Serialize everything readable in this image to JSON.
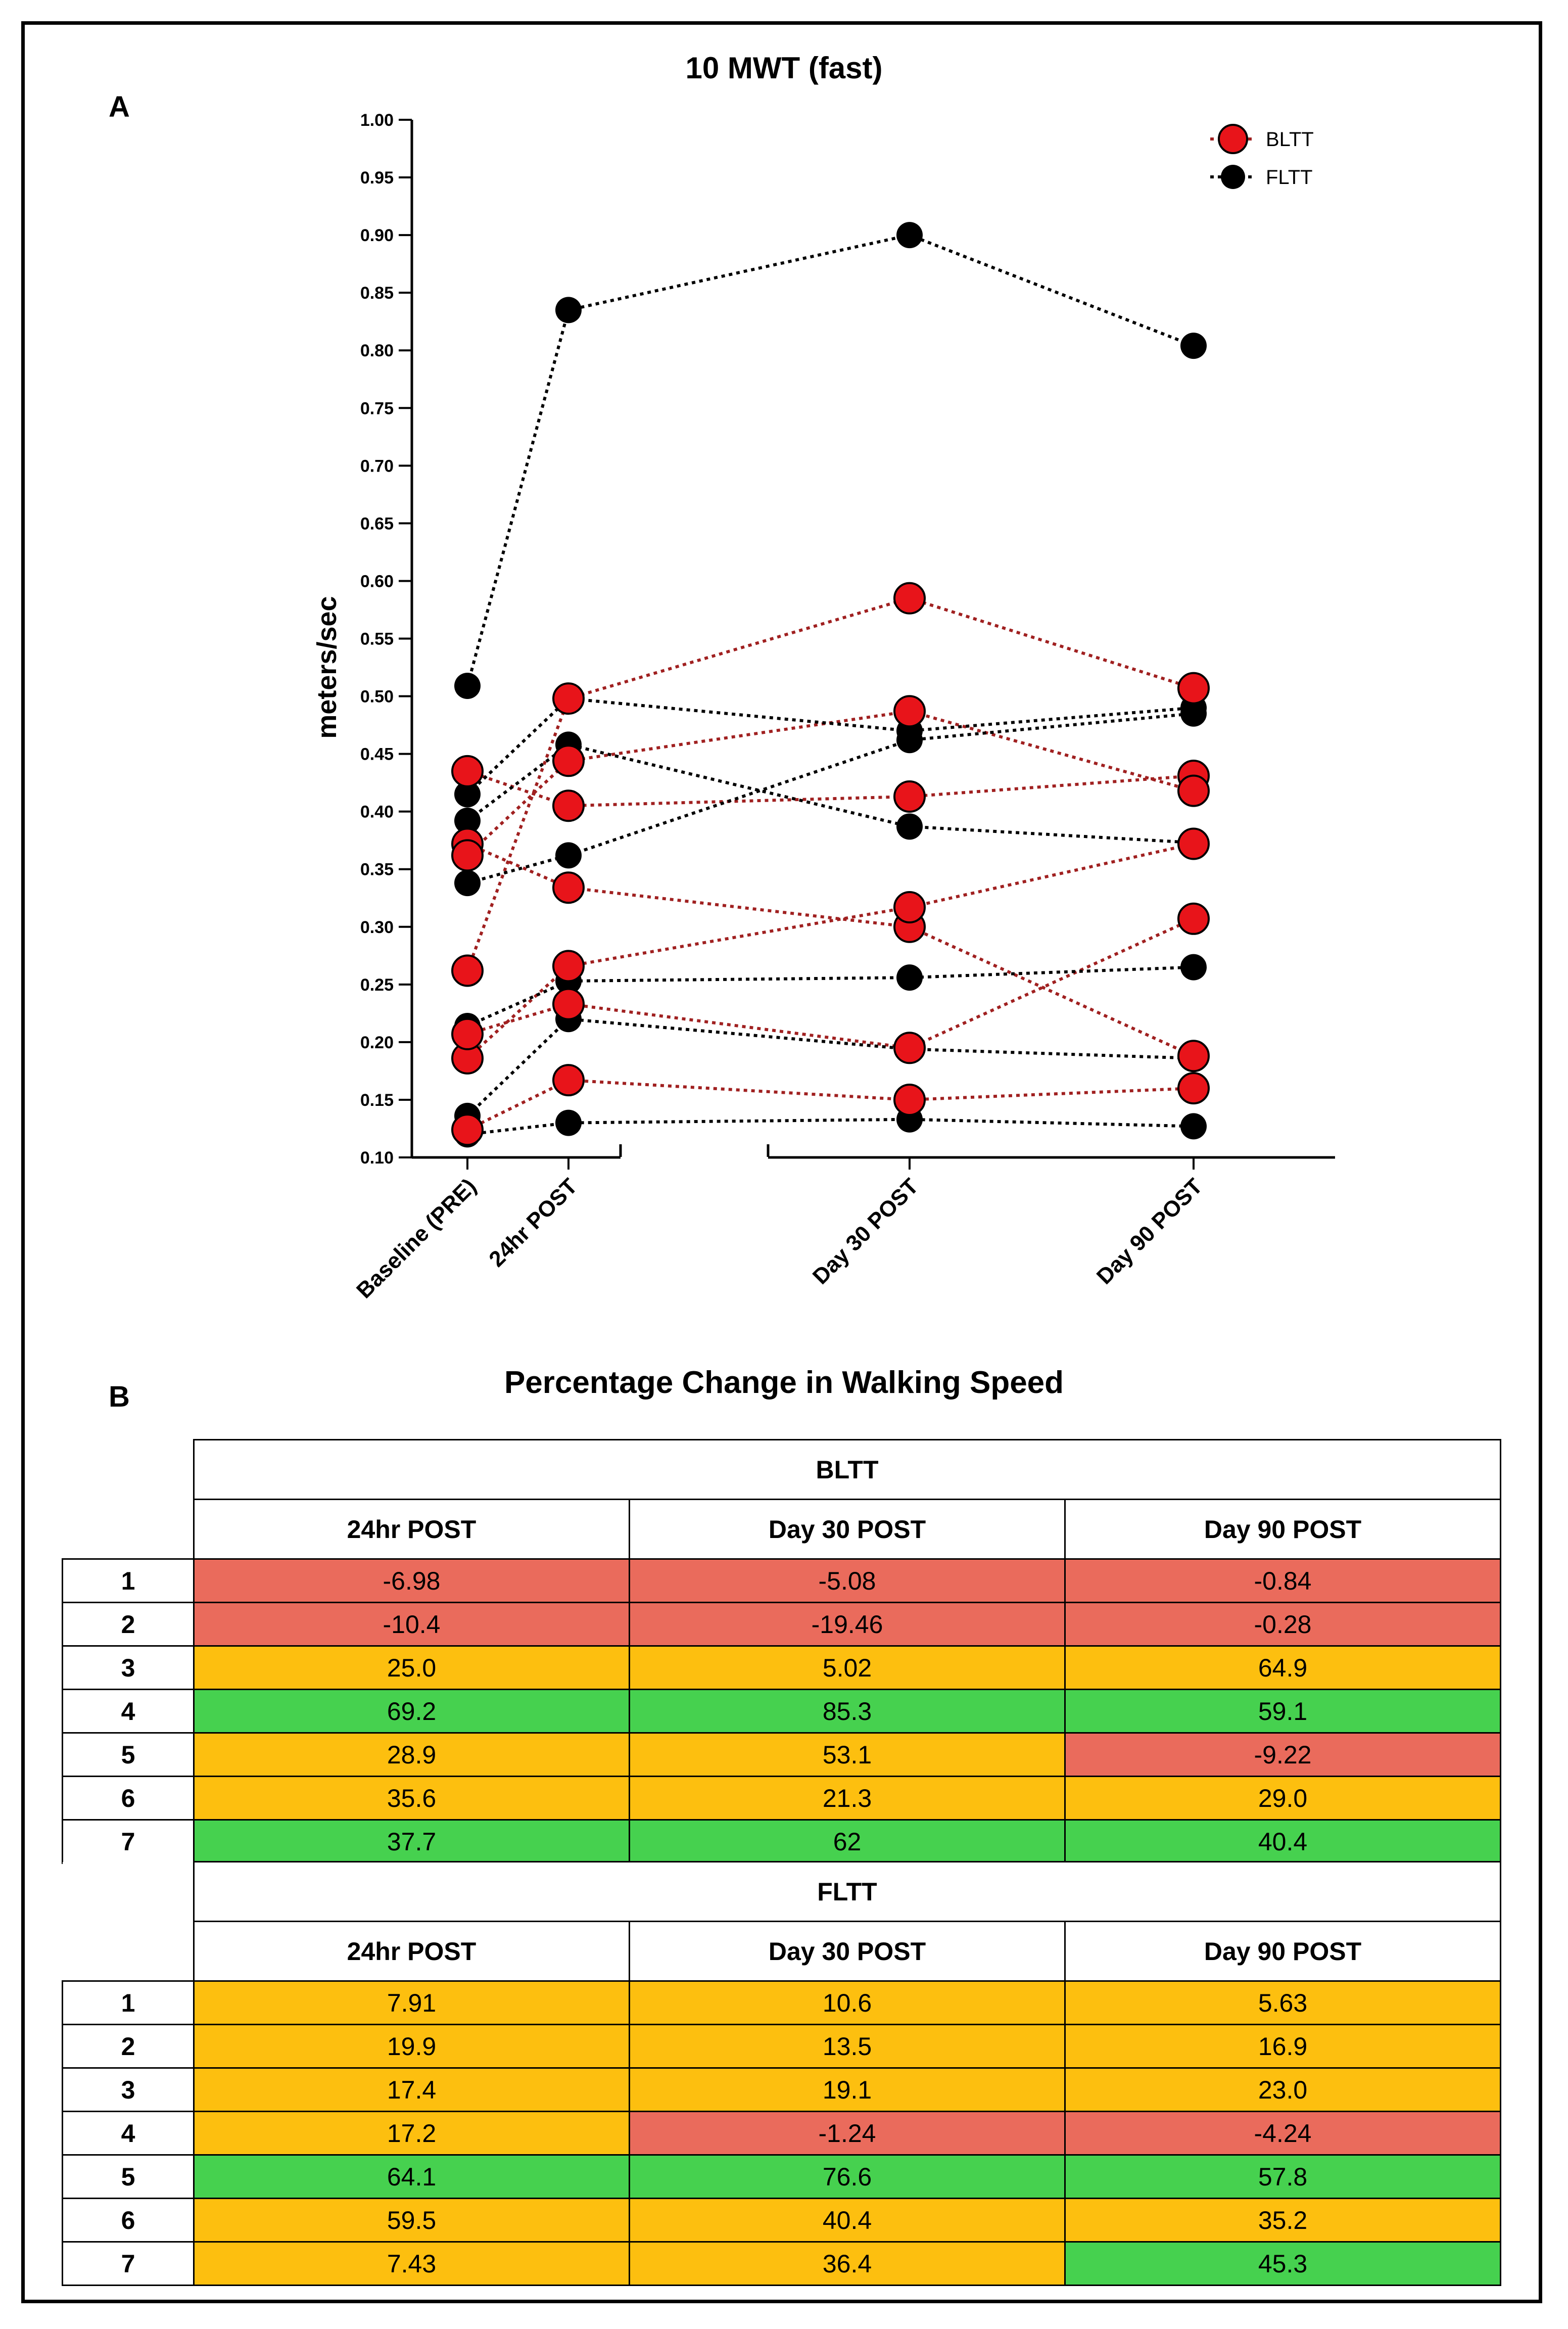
{
  "panel_a": {
    "letter": "A"
  },
  "panel_b": {
    "letter": "B"
  },
  "chart_data": {
    "type": "line",
    "title": "10 MWT (fast)",
    "xlabel": "",
    "ylabel": "meters/sec",
    "ylim": [
      0.1,
      1.0
    ],
    "yticks": [
      "0.10",
      "0.15",
      "0.20",
      "0.25",
      "0.30",
      "0.35",
      "0.40",
      "0.45",
      "0.50",
      "0.55",
      "0.60",
      "0.65",
      "0.70",
      "0.75",
      "0.80",
      "0.85",
      "0.90",
      "0.95",
      "1.00"
    ],
    "categories": [
      "Baseline (PRE)",
      "24hr POST",
      "Day 30 POST",
      "Day 90 POST"
    ],
    "category_positions_days": [
      0,
      1,
      30,
      90
    ],
    "legend": [
      "BLTT",
      "FLTT"
    ],
    "legend_position": "top-right",
    "colors": {
      "BLTT": "#e8141a",
      "FLTT": "#000000",
      "BLTT_line": "#a02020",
      "FLTT_line": "#000000"
    },
    "series": [
      {
        "name": "BLTT",
        "values": [
          0.435,
          0.405,
          0.413,
          0.431
        ]
      },
      {
        "name": "BLTT",
        "values": [
          0.372,
          0.334,
          0.3,
          0.188
        ]
      },
      {
        "name": "BLTT",
        "values": [
          0.124,
          0.167,
          0.15,
          0.16
        ]
      },
      {
        "name": "BLTT",
        "values": [
          0.186,
          0.266,
          0.317,
          0.372
        ]
      },
      {
        "name": "BLTT",
        "values": [
          0.207,
          0.233,
          0.195,
          0.307
        ]
      },
      {
        "name": "BLTT",
        "values": [
          0.262,
          0.498,
          0.585,
          0.507
        ]
      },
      {
        "name": "BLTT",
        "values": [
          0.362,
          0.444,
          0.487,
          0.418
        ]
      },
      {
        "name": "FLTT",
        "values": [
          0.509,
          0.835,
          0.9,
          0.804
        ]
      },
      {
        "name": "FLTT",
        "values": [
          0.392,
          0.458,
          0.387,
          0.373
        ]
      },
      {
        "name": "FLTT",
        "values": [
          0.338,
          0.362,
          0.462,
          0.485
        ]
      },
      {
        "name": "FLTT",
        "values": [
          0.415,
          0.498,
          0.47,
          0.49
        ]
      },
      {
        "name": "FLTT",
        "values": [
          0.214,
          0.253,
          0.256,
          0.265
        ]
      },
      {
        "name": "FLTT",
        "values": [
          0.136,
          0.22,
          0.194,
          0.186
        ]
      },
      {
        "name": "FLTT",
        "values": [
          0.12,
          0.13,
          0.133,
          0.127
        ]
      }
    ]
  },
  "table": {
    "title": "Percentage Change in Walking Speed",
    "colors": {
      "red": "#ea6b5c",
      "orange": "#fdbf0f",
      "green": "#46d14f"
    },
    "groups": [
      {
        "name": "BLTT",
        "columns": [
          "24hr POST",
          "Day 30 POST",
          "Day 90 POST"
        ],
        "rows": [
          {
            "id": "1",
            "cells": [
              {
                "v": "-6.98",
                "c": "red"
              },
              {
                "v": "-5.08",
                "c": "red"
              },
              {
                "v": "-0.84",
                "c": "red"
              }
            ]
          },
          {
            "id": "2",
            "cells": [
              {
                "v": "-10.4",
                "c": "red"
              },
              {
                "v": "-19.46",
                "c": "red"
              },
              {
                "v": "-0.28",
                "c": "red"
              }
            ]
          },
          {
            "id": "3",
            "cells": [
              {
                "v": "25.0",
                "c": "orange"
              },
              {
                "v": "5.02",
                "c": "orange"
              },
              {
                "v": "64.9",
                "c": "orange"
              }
            ]
          },
          {
            "id": "4",
            "cells": [
              {
                "v": "69.2",
                "c": "green"
              },
              {
                "v": "85.3",
                "c": "green"
              },
              {
                "v": "59.1",
                "c": "green"
              }
            ]
          },
          {
            "id": "5",
            "cells": [
              {
                "v": "28.9",
                "c": "orange"
              },
              {
                "v": "53.1",
                "c": "orange"
              },
              {
                "v": "-9.22",
                "c": "red"
              }
            ]
          },
          {
            "id": "6",
            "cells": [
              {
                "v": "35.6",
                "c": "orange"
              },
              {
                "v": "21.3",
                "c": "orange"
              },
              {
                "v": "29.0",
                "c": "orange"
              }
            ]
          },
          {
            "id": "7",
            "cells": [
              {
                "v": "37.7",
                "c": "green"
              },
              {
                "v": "62",
                "c": "green"
              },
              {
                "v": "40.4",
                "c": "green"
              }
            ]
          }
        ]
      },
      {
        "name": "FLTT",
        "columns": [
          "24hr POST",
          "Day 30 POST",
          "Day 90 POST"
        ],
        "rows": [
          {
            "id": "1",
            "cells": [
              {
                "v": "7.91",
                "c": "orange"
              },
              {
                "v": "10.6",
                "c": "orange"
              },
              {
                "v": "5.63",
                "c": "orange"
              }
            ]
          },
          {
            "id": "2",
            "cells": [
              {
                "v": "19.9",
                "c": "orange"
              },
              {
                "v": "13.5",
                "c": "orange"
              },
              {
                "v": "16.9",
                "c": "orange"
              }
            ]
          },
          {
            "id": "3",
            "cells": [
              {
                "v": "17.4",
                "c": "orange"
              },
              {
                "v": "19.1",
                "c": "orange"
              },
              {
                "v": "23.0",
                "c": "orange"
              }
            ]
          },
          {
            "id": "4",
            "cells": [
              {
                "v": "17.2",
                "c": "orange"
              },
              {
                "v": "-1.24",
                "c": "red"
              },
              {
                "v": "-4.24",
                "c": "red"
              }
            ]
          },
          {
            "id": "5",
            "cells": [
              {
                "v": "64.1",
                "c": "green"
              },
              {
                "v": "76.6",
                "c": "green"
              },
              {
                "v": "57.8",
                "c": "green"
              }
            ]
          },
          {
            "id": "6",
            "cells": [
              {
                "v": "59.5",
                "c": "orange"
              },
              {
                "v": "40.4",
                "c": "orange"
              },
              {
                "v": "35.2",
                "c": "orange"
              }
            ]
          },
          {
            "id": "7",
            "cells": [
              {
                "v": "7.43",
                "c": "orange"
              },
              {
                "v": "36.4",
                "c": "orange"
              },
              {
                "v": "45.3",
                "c": "green"
              }
            ]
          }
        ]
      }
    ]
  }
}
